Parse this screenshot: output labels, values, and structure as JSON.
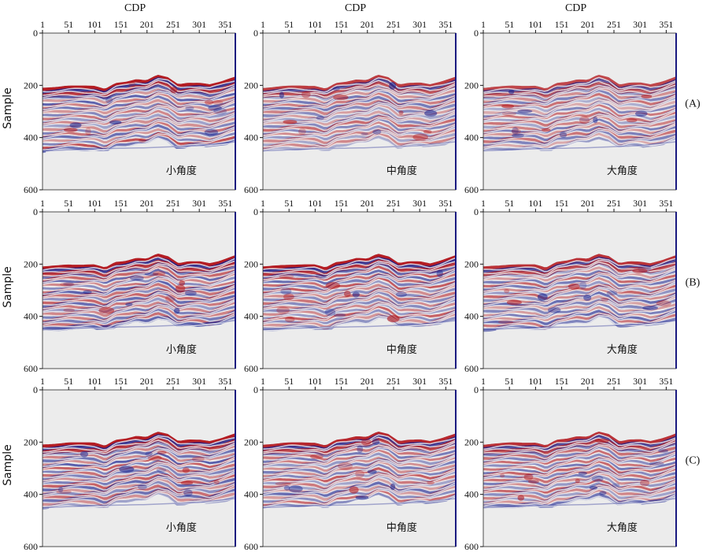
{
  "figure": {
    "top_axis_label": "CDP",
    "left_axis_label": "Sample",
    "row_labels": [
      "(A)",
      "(B)",
      "(C)"
    ],
    "column_labels": [
      "小角度",
      "中角度",
      "大角度"
    ]
  },
  "colors": {
    "positive": "#b11218",
    "negative": "#16208f",
    "background": "#ececec",
    "frame": "#1a1a80"
  },
  "chart_data": {
    "type": "heatmap",
    "description_of_axes": "seismic section panels, 3 rows x 3 columns",
    "x_ticks": [
      1,
      51,
      101,
      151,
      201,
      251,
      301,
      351
    ],
    "y_ticks": [
      0,
      200,
      400,
      600
    ],
    "xlim": [
      1,
      370
    ],
    "ylim": [
      0,
      600
    ],
    "xlabel": "CDP",
    "ylabel": "Sample",
    "horizon_top": {
      "cdp": [
        1,
        51,
        101,
        121,
        141,
        161,
        181,
        201,
        221,
        241,
        261,
        281,
        301,
        321,
        341,
        370
      ],
      "sample": [
        218,
        210,
        210,
        222,
        200,
        195,
        185,
        188,
        168,
        178,
        205,
        198,
        198,
        205,
        195,
        175
      ]
    },
    "base_boundary": {
      "cdp": [
        1,
        101,
        201,
        301,
        370
      ],
      "sample": [
        460,
        452,
        448,
        440,
        425
      ]
    },
    "panels": [
      {
        "row": "(A)",
        "angle": "小角度",
        "amplitude": 1.0
      },
      {
        "row": "(A)",
        "angle": "中角度",
        "amplitude": 0.85
      },
      {
        "row": "(A)",
        "angle": "大角度",
        "amplitude": 0.8
      },
      {
        "row": "(B)",
        "angle": "小角度",
        "amplitude": 1.0
      },
      {
        "row": "(B)",
        "angle": "中角度",
        "amplitude": 1.0
      },
      {
        "row": "(B)",
        "angle": "大角度",
        "amplitude": 0.9
      },
      {
        "row": "(C)",
        "angle": "小角度",
        "amplitude": 1.0
      },
      {
        "row": "(C)",
        "angle": "中角度",
        "amplitude": 0.95
      },
      {
        "row": "(C)",
        "angle": "大角度",
        "amplitude": 0.9
      }
    ]
  }
}
